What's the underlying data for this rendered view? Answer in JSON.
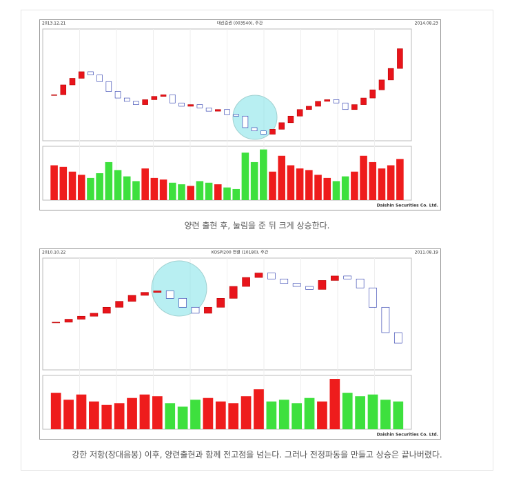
{
  "figures": [
    {
      "left_date": "2013.12.21",
      "title": "대신증권 (003540), 주간",
      "right_date": "2014.08.23",
      "footer": "Daishin Securities Co. Ltd.",
      "close": [
        9600,
        10200,
        10600,
        11000,
        10800,
        10400,
        9800,
        9400,
        9200,
        9000,
        9300,
        9500,
        9600,
        9100,
        8900,
        9000,
        8800,
        8600,
        8700,
        8400,
        8300,
        7600,
        7400,
        7200,
        7500,
        7900,
        8300,
        8700,
        8900,
        9200,
        9300,
        9100,
        8700,
        9000,
        9400,
        9900,
        10500,
        11200,
        12400
      ],
      "volume": [
        110,
        105,
        90,
        80,
        70,
        85,
        120,
        95,
        75,
        60,
        100,
        70,
        65,
        55,
        50,
        45,
        60,
        55,
        50,
        40,
        35,
        150,
        120,
        160,
        90,
        140,
        110,
        100,
        95,
        80,
        70,
        60,
        75,
        90,
        140,
        120,
        100,
        110,
        130
      ],
      "price_ylim": [
        6800,
        13600
      ],
      "volume_ylim": [
        0,
        170
      ],
      "caption": "양련 출현 후, 눌림을 준 뒤 크게 상승한다."
    },
    {
      "left_date": "2010.10.22",
      "title": "KOSPI200 연결 (10180), 주간",
      "right_date": "2011.08.19",
      "footer": "Daishin Securities Co. Ltd.",
      "close": [
        252,
        254,
        256,
        258,
        262,
        266,
        270,
        272,
        273,
        268,
        262,
        258,
        262,
        268,
        276,
        282,
        285,
        281,
        278,
        276,
        274,
        280,
        283,
        281,
        275,
        262,
        245,
        238
      ],
      "volume": [
        210,
        170,
        200,
        160,
        140,
        150,
        180,
        200,
        190,
        150,
        130,
        170,
        180,
        160,
        150,
        190,
        230,
        160,
        170,
        150,
        180,
        160,
        290,
        210,
        190,
        200,
        170,
        160
      ],
      "price_ylim": [
        220,
        295
      ],
      "volume_ylim": [
        0,
        310
      ],
      "caption": "강한 저항(장대음봉) 이후, 양련출현과 함께 전고점을 넘는다. 그러나 전정파동을 만들고 상승은 끝나버렸다."
    }
  ]
}
